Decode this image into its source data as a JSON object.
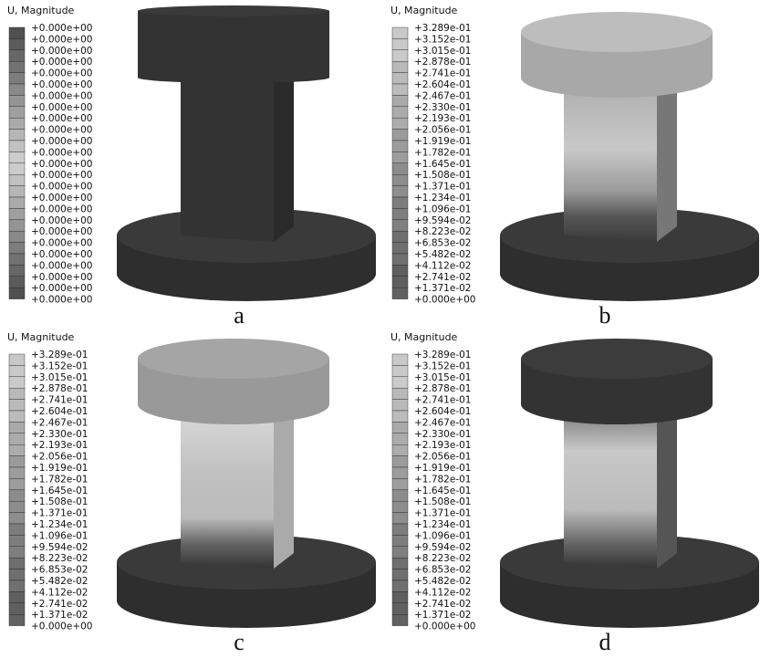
{
  "panels": [
    {
      "legend_title": "U, Magnitude",
      "caption": "a",
      "legend_labels": [
        "+0.000e+00",
        "+0.000e+00",
        "+0.000e+00",
        "+0.000e+00",
        "+0.000e+00",
        "+0.000e+00",
        "+0.000e+00",
        "+0.000e+00",
        "+0.000e+00",
        "+0.000e+00",
        "+0.000e+00",
        "+0.000e+00",
        "+0.000e+00",
        "+0.000e+00",
        "+0.000e+00",
        "+0.000e+00",
        "+0.000e+00",
        "+0.000e+00",
        "+0.000e+00",
        "+0.000e+00",
        "+0.000e+00",
        "+0.000e+00",
        "+0.000e+00",
        "+0.000e+00",
        "+0.000e+00"
      ]
    },
    {
      "legend_title": "U, Magnitude",
      "caption": "b",
      "legend_labels": [
        "+3.289e-01",
        "+3.152e-01",
        "+3.015e-01",
        "+2.878e-01",
        "+2.741e-01",
        "+2.604e-01",
        "+2.467e-01",
        "+2.330e-01",
        "+2.193e-01",
        "+2.056e-01",
        "+1.919e-01",
        "+1.782e-01",
        "+1.645e-01",
        "+1.508e-01",
        "+1.371e-01",
        "+1.234e-01",
        "+1.096e-01",
        "+9.594e-02",
        "+8.223e-02",
        "+6.853e-02",
        "+5.482e-02",
        "+4.112e-02",
        "+2.741e-02",
        "+1.371e-02",
        "+0.000e+00"
      ]
    },
    {
      "legend_title": "U, Magnitude",
      "caption": "c",
      "legend_labels": [
        "+3.289e-01",
        "+3.152e-01",
        "+3.015e-01",
        "+2.878e-01",
        "+2.741e-01",
        "+2.604e-01",
        "+2.467e-01",
        "+2.330e-01",
        "+2.193e-01",
        "+2.056e-01",
        "+1.919e-01",
        "+1.782e-01",
        "+1.645e-01",
        "+1.508e-01",
        "+1.371e-01",
        "+1.234e-01",
        "+1.096e-01",
        "+9.594e-02",
        "+8.223e-02",
        "+6.853e-02",
        "+5.482e-02",
        "+4.112e-02",
        "+2.741e-02",
        "+1.371e-02",
        "+0.000e+00"
      ]
    },
    {
      "legend_title": "U, Magnitude",
      "caption": "d",
      "legend_labels": [
        "+3.289e-01",
        "+3.152e-01",
        "+3.015e-01",
        "+2.878e-01",
        "+2.741e-01",
        "+2.604e-01",
        "+2.467e-01",
        "+2.330e-01",
        "+2.193e-01",
        "+2.056e-01",
        "+1.919e-01",
        "+1.782e-01",
        "+1.645e-01",
        "+1.508e-01",
        "+1.371e-01",
        "+1.234e-01",
        "+1.096e-01",
        "+9.594e-02",
        "+8.223e-02",
        "+6.853e-02",
        "+5.482e-02",
        "+4.112e-02",
        "+2.741e-02",
        "+1.371e-02",
        "+0.000e+00"
      ]
    }
  ]
}
